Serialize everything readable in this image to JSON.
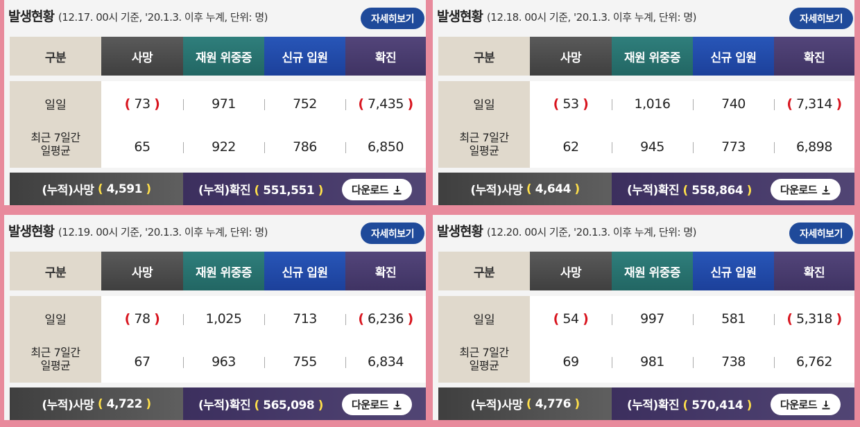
{
  "title": "발생현황",
  "headers": {
    "gubun": "구분",
    "death": "사망",
    "critical": "재원 위중증",
    "admit": "신규 입원",
    "confirmed": "확진"
  },
  "labels": {
    "daily": "일일",
    "avg_line1": "최근 7일간",
    "avg_line2": "일평균"
  },
  "buttons": {
    "detail": "자세히보기",
    "download": "다운로드"
  },
  "footer_labels": {
    "cum_death": "(누적)사망",
    "cum_confirmed": "(누적)확진"
  },
  "paren": {
    "open": "(",
    "close": ")"
  },
  "icons": {
    "download": "download-icon"
  },
  "colors": {
    "background": "#e88a9c",
    "accent_blue": "#1f4a9a",
    "paren_red": "#d8141e",
    "highlight_yellow": "#ffe04a"
  },
  "panels": [
    {
      "subtitle": "(12.17. 00시 기준, '20.1.3. 이후 누계, 단위: 명)",
      "daily": {
        "death": "73",
        "critical": "971",
        "admit": "752",
        "confirmed": "7,435"
      },
      "avg": {
        "death": "65",
        "critical": "922",
        "admit": "786",
        "confirmed": "6,850"
      },
      "cum_death": "4,591",
      "cum_confirmed": "551,551"
    },
    {
      "subtitle": "(12.18. 00시 기준, '20.1.3. 이후 누계, 단위: 명)",
      "daily": {
        "death": "53",
        "critical": "1,016",
        "admit": "740",
        "confirmed": "7,314"
      },
      "avg": {
        "death": "62",
        "critical": "945",
        "admit": "773",
        "confirmed": "6,898"
      },
      "cum_death": "4,644",
      "cum_confirmed": "558,864"
    },
    {
      "subtitle": "(12.19. 00시 기준, '20.1.3. 이후 누계, 단위: 명)",
      "daily": {
        "death": "78",
        "critical": "1,025",
        "admit": "713",
        "confirmed": "6,236"
      },
      "avg": {
        "death": "67",
        "critical": "963",
        "admit": "755",
        "confirmed": "6,834"
      },
      "cum_death": "4,722",
      "cum_confirmed": "565,098"
    },
    {
      "subtitle": "(12.20. 00시 기준, '20.1.3. 이후 누계, 단위: 명)",
      "daily": {
        "death": "54",
        "critical": "997",
        "admit": "581",
        "confirmed": "5,318"
      },
      "avg": {
        "death": "69",
        "critical": "981",
        "admit": "738",
        "confirmed": "6,762"
      },
      "cum_death": "4,776",
      "cum_confirmed": "570,414"
    }
  ]
}
